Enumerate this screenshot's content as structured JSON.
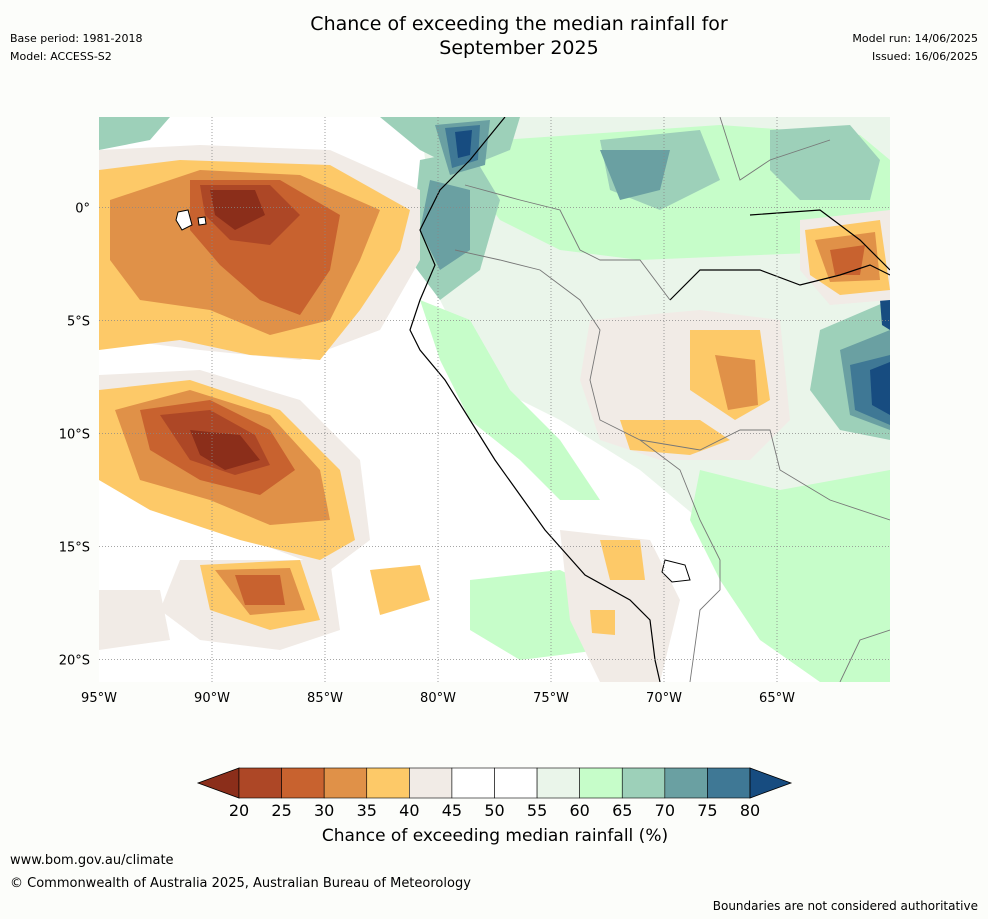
{
  "header": {
    "title_line1": "Chance of exceeding the median rainfall for",
    "title_line2": "September 2025",
    "base_period": "Base period: 1981-2018",
    "model": "Model: ACCESS-S2",
    "model_run": "Model run: 14/06/2025",
    "issued": "Issued: 16/06/2025"
  },
  "map": {
    "lon_range": [
      -95,
      -60
    ],
    "lat_range": [
      -21,
      4
    ],
    "lon_ticks": [
      {
        "value": -95,
        "label": "95°W"
      },
      {
        "value": -90,
        "label": "90°W"
      },
      {
        "value": -85,
        "label": "85°W"
      },
      {
        "value": -80,
        "label": "80°W"
      },
      {
        "value": -75,
        "label": "75°W"
      },
      {
        "value": -70,
        "label": "70°W"
      },
      {
        "value": -65,
        "label": "65°W"
      }
    ],
    "lat_ticks": [
      {
        "value": 0,
        "label": "0°"
      },
      {
        "value": -5,
        "label": "5°S"
      },
      {
        "value": -10,
        "label": "10°S"
      },
      {
        "value": -15,
        "label": "15°S"
      },
      {
        "value": -20,
        "label": "20°S"
      }
    ],
    "gridlines": "dotted",
    "region": "Western South America and eastern Pacific"
  },
  "legend": {
    "title": "Chance of exceeding median rainfall (%)",
    "bins": [
      {
        "range": [
          0,
          20
        ],
        "color": "#8b2e1a"
      },
      {
        "range": [
          20,
          25
        ],
        "color": "#ad4726"
      },
      {
        "range": [
          25,
          30
        ],
        "color": "#c8622f"
      },
      {
        "range": [
          30,
          35
        ],
        "color": "#e09148"
      },
      {
        "range": [
          35,
          40
        ],
        "color": "#fdc968"
      },
      {
        "range": [
          40,
          45
        ],
        "color": "#f1ebe6"
      },
      {
        "range": [
          45,
          50
        ],
        "color": "#ffffff"
      },
      {
        "range": [
          50,
          55
        ],
        "color": "#ffffff"
      },
      {
        "range": [
          55,
          60
        ],
        "color": "#eaf5ea"
      },
      {
        "range": [
          60,
          65
        ],
        "color": "#c6fdc9"
      },
      {
        "range": [
          65,
          70
        ],
        "color": "#9dd0b9"
      },
      {
        "range": [
          70,
          75
        ],
        "color": "#6aa0a2"
      },
      {
        "range": [
          75,
          80
        ],
        "color": "#3f7895"
      },
      {
        "range": [
          80,
          100
        ],
        "color": "#174c80"
      }
    ],
    "tick_labels": [
      "20",
      "25",
      "30",
      "35",
      "40",
      "45",
      "50",
      "55",
      "60",
      "65",
      "70",
      "75",
      "80"
    ]
  },
  "footer": {
    "url": "www.bom.gov.au/climate",
    "copyright": "© Commonwealth of Australia 2025, Australian Bureau of Meteorology",
    "note": "Boundaries are not considered authoritative"
  }
}
